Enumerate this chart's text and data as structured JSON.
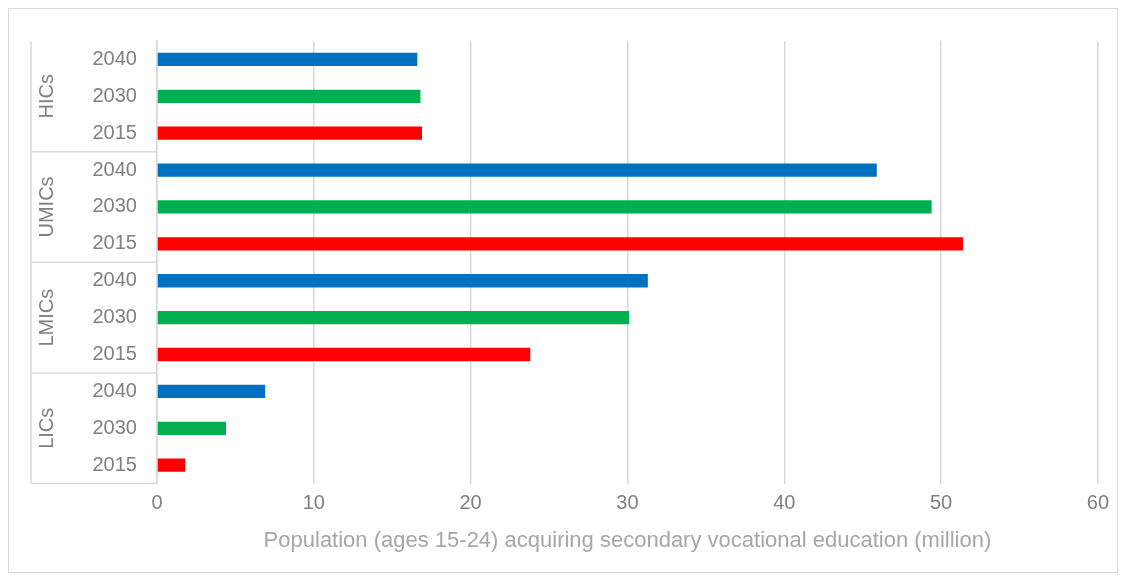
{
  "chart_data": {
    "type": "bar",
    "orientation": "horizontal",
    "categories": [
      "2040",
      "2030",
      "2015",
      "2040",
      "2030",
      "2015",
      "2040",
      "2030",
      "2015",
      "2040",
      "2030",
      "2015"
    ],
    "values": [
      16.6,
      16.8,
      16.9,
      45.9,
      49.4,
      51.4,
      31.3,
      30.1,
      23.8,
      6.9,
      4.4,
      1.8
    ],
    "colors": [
      "#0070c0",
      "#00b050",
      "#ff0000",
      "#0070c0",
      "#00b050",
      "#ff0000",
      "#0070c0",
      "#00b050",
      "#ff0000",
      "#0070c0",
      "#00b050",
      "#ff0000"
    ],
    "xlim": [
      0,
      60
    ],
    "xticks": [
      0,
      10,
      20,
      30,
      40,
      50,
      60
    ],
    "xlabel": "Population (ages 15-24) acquiring secondary vocational education (million)",
    "annotations": [
      "HICs",
      "UMICs",
      "LMICs",
      "LICs"
    ],
    "grid": "x",
    "legend": false
  }
}
